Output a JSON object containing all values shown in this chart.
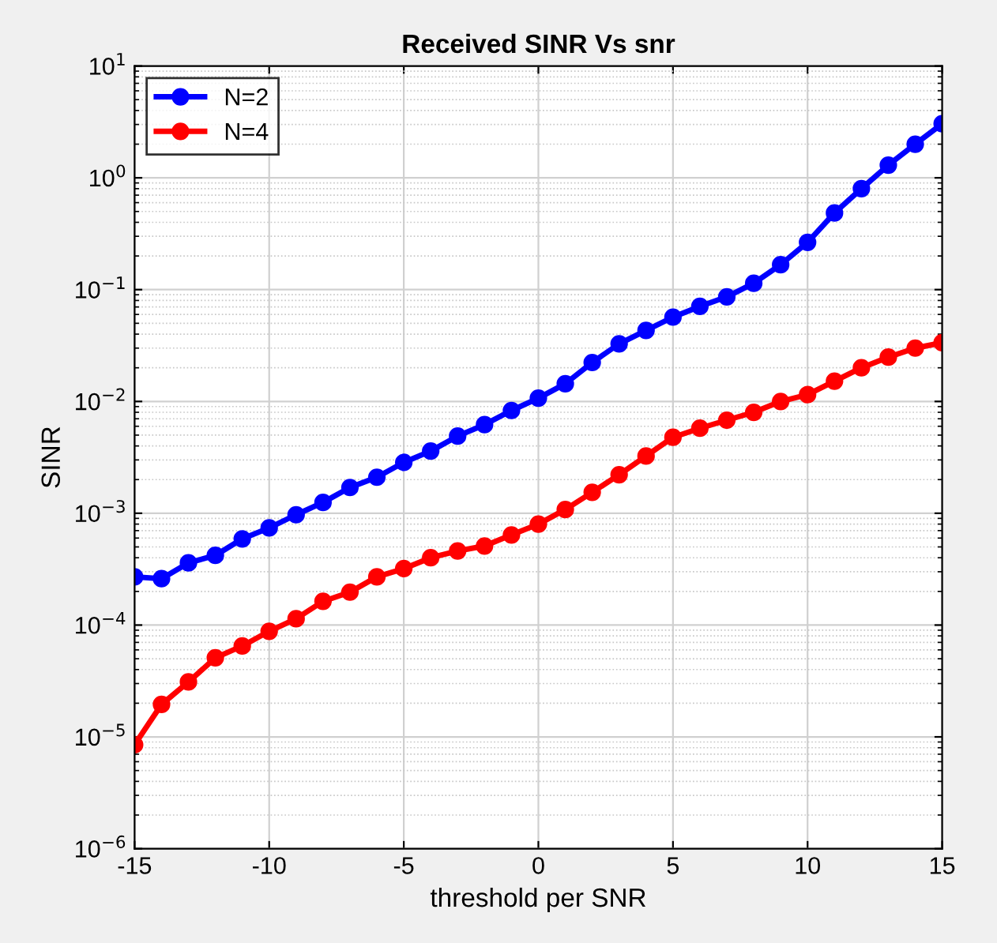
{
  "chart_data": {
    "type": "line",
    "title": "Received SINR Vs snr",
    "xlabel": "threshold per SNR",
    "ylabel": "SINR",
    "x": [
      -15,
      -14,
      -13,
      -12,
      -11,
      -10,
      -9,
      -8,
      -7,
      -6,
      -5,
      -4,
      -3,
      -2,
      -1,
      0,
      1,
      2,
      3,
      4,
      5,
      6,
      7,
      8,
      9,
      10,
      11,
      12,
      13,
      14,
      15
    ],
    "series": [
      {
        "name": "N=2",
        "color": "#0000ff",
        "values": [
          0.00027,
          0.00026,
          0.00036,
          0.00042,
          0.00059,
          0.00074,
          0.00097,
          0.00125,
          0.0017,
          0.0021,
          0.00285,
          0.0036,
          0.0049,
          0.0062,
          0.0083,
          0.0107,
          0.0144,
          0.0223,
          0.0328,
          0.0432,
          0.0568,
          0.0708,
          0.0863,
          0.114,
          0.167,
          0.265,
          0.485,
          0.8,
          1.3,
          2.0,
          3.05
        ]
      },
      {
        "name": "N=4",
        "color": "#ff0000",
        "values": [
          8.5e-06,
          1.95e-05,
          3.1e-05,
          5.1e-05,
          6.5e-05,
          8.8e-05,
          0.000114,
          0.000163,
          0.000197,
          0.00027,
          0.00032,
          0.0004,
          0.00046,
          0.00051,
          0.00064,
          0.0008,
          0.00108,
          0.00154,
          0.00221,
          0.00325,
          0.00478,
          0.00576,
          0.0068,
          0.008,
          0.01,
          0.0115,
          0.0152,
          0.02,
          0.0249,
          0.03,
          0.0335
        ]
      }
    ],
    "xlim": [
      -15,
      15
    ],
    "xticks": [
      -15,
      -10,
      -5,
      0,
      5,
      10,
      15
    ],
    "log": "y",
    "ylim": [
      1e-06,
      10
    ],
    "yticks": [
      {
        "value": 1e-06,
        "label": "10$^{−6}$"
      },
      {
        "value": 1e-05,
        "label": "10$^{−5}$"
      },
      {
        "value": 0.0001,
        "label": "10$^{−4}$"
      },
      {
        "value": 0.001,
        "label": "10$^{−3}$"
      },
      {
        "value": 0.01,
        "label": "10$^{−2}$"
      },
      {
        "value": 0.1,
        "label": "10$^{−1}$"
      },
      {
        "value": 1,
        "label": "10$^{0}$"
      },
      {
        "value": 10,
        "label": "10$^{1}$"
      }
    ],
    "grid": true,
    "legend": "top left",
    "marker": "circle",
    "line_style": "solid"
  }
}
